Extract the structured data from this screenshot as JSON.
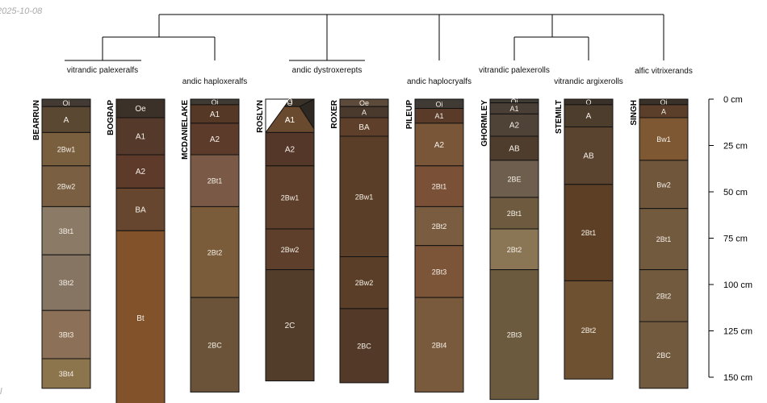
{
  "date_stamp": "2025-10-08",
  "corner_mark": "l",
  "depth_axis": {
    "unit": "cm",
    "ticks": [
      "0 cm",
      "25 cm",
      "50 cm",
      "75 cm",
      "100 cm",
      "125 cm",
      "150 cm"
    ]
  },
  "taxa": [
    "vitrandic palexeralfs",
    "andic haploxeralfs",
    "andic dystroxerepts",
    "andic haplocryalfs",
    "vitrandic palexerolls",
    "vitrandic argixerolls",
    "alfic vitrixerands"
  ],
  "profiles": [
    {
      "name": "BEARRUN",
      "horizons": [
        {
          "label": "Oi",
          "top": 0,
          "bottom": 4,
          "color": "#433b33"
        },
        {
          "label": "A",
          "top": 4,
          "bottom": 18,
          "color": "#5b4833"
        },
        {
          "label": "2Bw1",
          "top": 18,
          "bottom": 36,
          "color": "#7a5f3f"
        },
        {
          "label": "2Bw2",
          "top": 36,
          "bottom": 58,
          "color": "#7a5f42"
        },
        {
          "label": "3Bt1",
          "top": 58,
          "bottom": 84,
          "color": "#8a7a66"
        },
        {
          "label": "3Bt2",
          "top": 84,
          "bottom": 114,
          "color": "#857562"
        },
        {
          "label": "3Bt3",
          "top": 114,
          "bottom": 140,
          "color": "#8c7158"
        },
        {
          "label": "3Bt4",
          "top": 140,
          "bottom": 156,
          "color": "#8c744c"
        }
      ]
    },
    {
      "name": "BOGRAP",
      "horizons": [
        {
          "label": "Oe",
          "top": 0,
          "bottom": 10,
          "color": "#3b3129"
        },
        {
          "label": "A1",
          "top": 10,
          "bottom": 30,
          "color": "#55392b"
        },
        {
          "label": "A2",
          "top": 30,
          "bottom": 48,
          "color": "#5e3a2a"
        },
        {
          "label": "BA",
          "top": 48,
          "bottom": 71,
          "color": "#66462f"
        },
        {
          "label": "Bt",
          "top": 71,
          "bottom": 165,
          "color": "#82522a"
        }
      ]
    },
    {
      "name": "MCDANIELAKE",
      "horizons": [
        {
          "label": "Oi",
          "top": 0,
          "bottom": 3,
          "color": "#3f3a33"
        },
        {
          "label": "A1",
          "top": 3,
          "bottom": 13,
          "color": "#553826"
        },
        {
          "label": "A2",
          "top": 13,
          "bottom": 30,
          "color": "#5d3b2b"
        },
        {
          "label": "2Bt1",
          "top": 30,
          "bottom": 58,
          "color": "#7a5a47"
        },
        {
          "label": "2Bt2",
          "top": 58,
          "bottom": 107,
          "color": "#7a5b3a"
        },
        {
          "label": "2BC",
          "top": 107,
          "bottom": 158,
          "color": "#6a5339"
        }
      ]
    },
    {
      "name": "ROSLYN",
      "horizons": [
        {
          "label": "O",
          "top": 0,
          "bottom": 4,
          "color": "#3a3129"
        },
        {
          "label": "A1",
          "top": 4,
          "bottom": 18,
          "color": "#6a4a2e"
        },
        {
          "label": "A2",
          "top": 18,
          "bottom": 36,
          "color": "#55372a"
        },
        {
          "label": "2Bw1",
          "top": 36,
          "bottom": 70,
          "color": "#5d3f2b"
        },
        {
          "label": "2Bw2",
          "top": 70,
          "bottom": 92,
          "color": "#5d3f2b"
        },
        {
          "label": "2C",
          "top": 92,
          "bottom": 152,
          "color": "#523c2a"
        }
      ]
    },
    {
      "name": "ROXER",
      "horizons": [
        {
          "label": "Oe",
          "top": 0,
          "bottom": 4,
          "color": "#5c4a3a"
        },
        {
          "label": "A",
          "top": 4,
          "bottom": 10,
          "color": "#4a3a2d"
        },
        {
          "label": "BA",
          "top": 10,
          "bottom": 20,
          "color": "#5e3f29"
        },
        {
          "label": "2Bw1",
          "top": 20,
          "bottom": 85,
          "color": "#5a3e27"
        },
        {
          "label": "2Bw2",
          "top": 85,
          "bottom": 113,
          "color": "#5a3e27"
        },
        {
          "label": "2BC",
          "top": 113,
          "bottom": 153,
          "color": "#533a28"
        }
      ]
    },
    {
      "name": "PILEUP",
      "horizons": [
        {
          "label": "Oi",
          "top": 0,
          "bottom": 5,
          "color": "#3f3a33"
        },
        {
          "label": "A1",
          "top": 5,
          "bottom": 13,
          "color": "#5a3a28"
        },
        {
          "label": "A2",
          "top": 13,
          "bottom": 36,
          "color": "#7a5638"
        },
        {
          "label": "2Bt1",
          "top": 36,
          "bottom": 58,
          "color": "#7a5136"
        },
        {
          "label": "2Bt2",
          "top": 58,
          "bottom": 79,
          "color": "#7a5c40"
        },
        {
          "label": "2Bt3",
          "top": 79,
          "bottom": 107,
          "color": "#7c5438"
        },
        {
          "label": "2Bt4",
          "top": 107,
          "bottom": 158,
          "color": "#7a5a3c"
        }
      ]
    },
    {
      "name": "GHORMLEY",
      "horizons": [
        {
          "label": "Oi",
          "top": 0,
          "bottom": 2,
          "color": "#3f3a33"
        },
        {
          "label": "A1",
          "top": 2,
          "bottom": 8,
          "color": "#4a3f36"
        },
        {
          "label": "A2",
          "top": 8,
          "bottom": 20,
          "color": "#4f4237"
        },
        {
          "label": "AB",
          "top": 20,
          "bottom": 33,
          "color": "#4e3d2c"
        },
        {
          "label": "2BE",
          "top": 33,
          "bottom": 53,
          "color": "#6e5e4e"
        },
        {
          "label": "2Bt1",
          "top": 53,
          "bottom": 70,
          "color": "#6d5a3f"
        },
        {
          "label": "2Bt2",
          "top": 70,
          "bottom": 92,
          "color": "#8a7655"
        },
        {
          "label": "2Bt3",
          "top": 92,
          "bottom": 162,
          "color": "#6b5a3e"
        }
      ]
    },
    {
      "name": "STEMILT",
      "horizons": [
        {
          "label": "O",
          "top": 0,
          "bottom": 3,
          "color": "#3a3129"
        },
        {
          "label": "A",
          "top": 3,
          "bottom": 15,
          "color": "#4d3d2d"
        },
        {
          "label": "AB",
          "top": 15,
          "bottom": 46,
          "color": "#5a4430"
        },
        {
          "label": "2Bt1",
          "top": 46,
          "bottom": 98,
          "color": "#5c3f24"
        },
        {
          "label": "2Bt2",
          "top": 98,
          "bottom": 151,
          "color": "#6e5130"
        }
      ]
    },
    {
      "name": "SINGH",
      "horizons": [
        {
          "label": "Oi",
          "top": 0,
          "bottom": 3,
          "color": "#3a3129"
        },
        {
          "label": "A",
          "top": 3,
          "bottom": 10,
          "color": "#5c3f2a"
        },
        {
          "label": "Bw1",
          "top": 10,
          "bottom": 33,
          "color": "#7e5833"
        },
        {
          "label": "Bw2",
          "top": 33,
          "bottom": 59,
          "color": "#70563b"
        },
        {
          "label": "2Bt1",
          "top": 59,
          "bottom": 92,
          "color": "#725a3f"
        },
        {
          "label": "2Bt2",
          "top": 92,
          "bottom": 120,
          "color": "#725a3f"
        },
        {
          "label": "2BC",
          "top": 120,
          "bottom": 156,
          "color": "#725a3f"
        }
      ]
    }
  ]
}
